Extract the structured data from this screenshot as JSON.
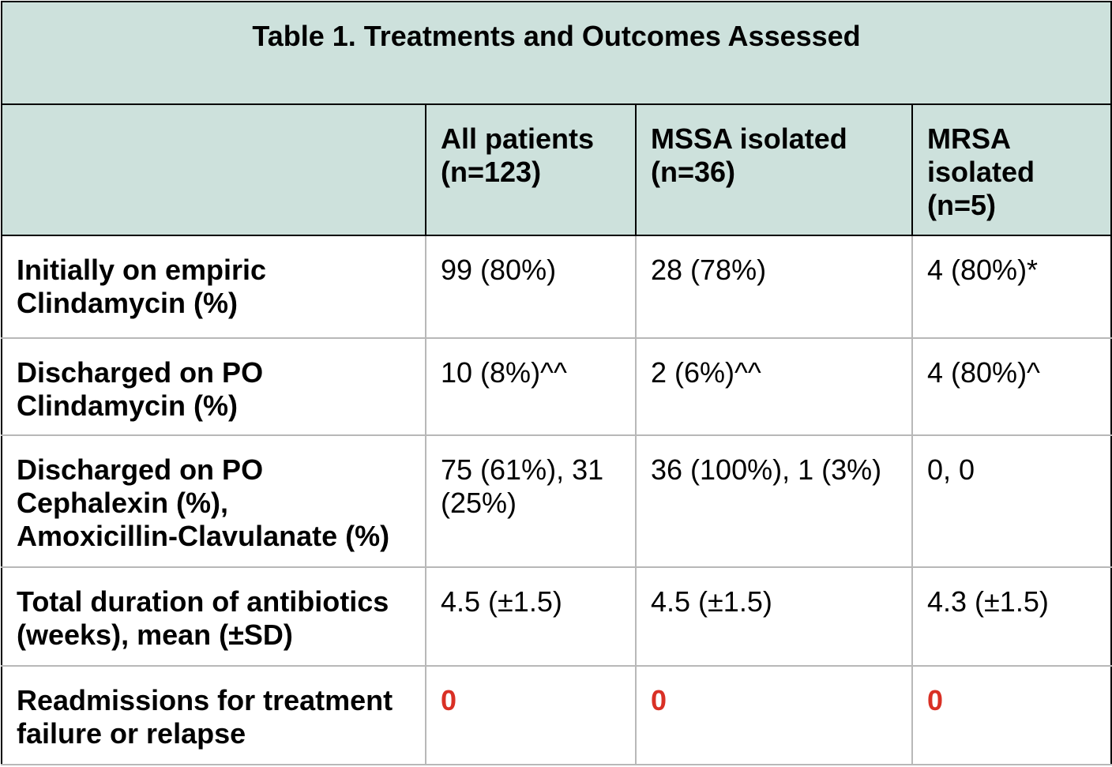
{
  "title": "Table 1. Treatments and Outcomes Assessed",
  "columns": [
    "",
    "All patients (n=123)",
    "MSSA isolated (n=36)",
    "MRSA isolated (n=5)"
  ],
  "column_lines": [
    [],
    [
      "All patients",
      "(n=123)"
    ],
    [
      "MSSA isolated",
      "(n=36)"
    ],
    [
      "MRSA",
      "isolated",
      "(n=5)"
    ]
  ],
  "rows": [
    {
      "label_lines": [
        "Initially on empiric",
        "Clindamycin (%)"
      ],
      "values": [
        "99 (80%)",
        "28 (78%)",
        "4 (80%)*"
      ]
    },
    {
      "label_lines": [
        "Discharged on PO",
        "Clindamycin (%)"
      ],
      "values": [
        "10 (8%)^^",
        "2 (6%)^^",
        "4 (80%)^"
      ]
    },
    {
      "label_lines": [
        "Discharged on PO",
        "Cephalexin (%),",
        "Amoxicillin-Clavulanate (%)"
      ],
      "values_lines": [
        [
          "75 (61%), 31",
          "(25%)"
        ],
        [
          "36 (100%), 1 (3%)"
        ],
        [
          "0, 0"
        ]
      ]
    },
    {
      "label_lines": [
        "Total duration of antibiotics",
        "(weeks), mean (±SD)"
      ],
      "values": [
        "4.5 (±1.5)",
        "4.5 (±1.5)",
        "4.3 (±1.5)"
      ]
    },
    {
      "label_lines": [
        "Readmissions for treatment",
        "failure or relapse"
      ],
      "values": [
        "0",
        "0",
        "0"
      ]
    }
  ],
  "colors": {
    "header_bg": "#cde1dc",
    "highlight_value": "#d93025"
  }
}
